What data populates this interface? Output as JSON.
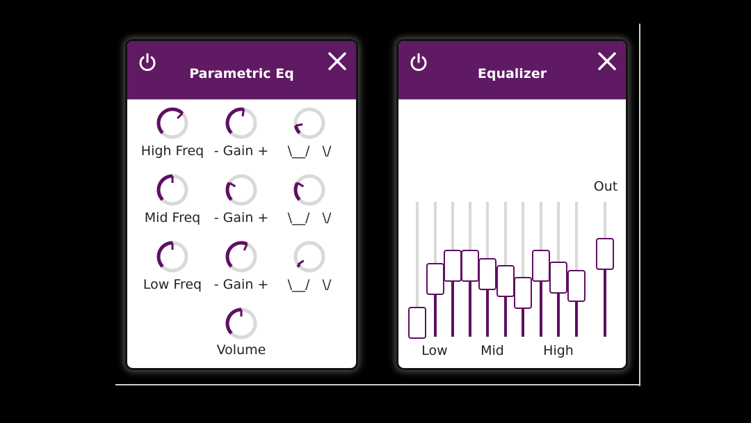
{
  "colors": {
    "accent": "#5f0f63",
    "header": "#5f1a63",
    "track": "#d9d9d9",
    "panel": "#ffffff"
  },
  "parametric_eq": {
    "title": "Parametric Eq",
    "power_icon": "power-icon",
    "close_icon": "close-icon",
    "rows": [
      {
        "freq_label": "High Freq",
        "gain_label": "- Gain +",
        "q_label": "\\__/   \\/",
        "freq": 0.67,
        "gain": 0.54,
        "q": 0.13
      },
      {
        "freq_label": "Mid Freq",
        "gain_label": "- Gain +",
        "q_label": "\\__/   \\/",
        "freq": 0.5,
        "gain": 0.28,
        "q": 0.28
      },
      {
        "freq_label": "Low Freq",
        "gain_label": "- Gain +",
        "q_label": "\\__/   \\/",
        "freq": 0.5,
        "gain": 0.59,
        "q": 0.04
      }
    ],
    "volume": {
      "label": "Volume",
      "value": 0.5
    }
  },
  "equalizer": {
    "title": "Equalizer",
    "power_icon": "power-icon",
    "close_icon": "close-icon",
    "band_labels": {
      "low": "Low",
      "mid": "Mid",
      "high": "High"
    },
    "out_label": "Out",
    "bands": [
      0.12,
      0.49,
      0.6,
      0.6,
      0.53,
      0.47,
      0.37,
      0.6,
      0.5,
      0.43
    ],
    "out": 0.7
  }
}
